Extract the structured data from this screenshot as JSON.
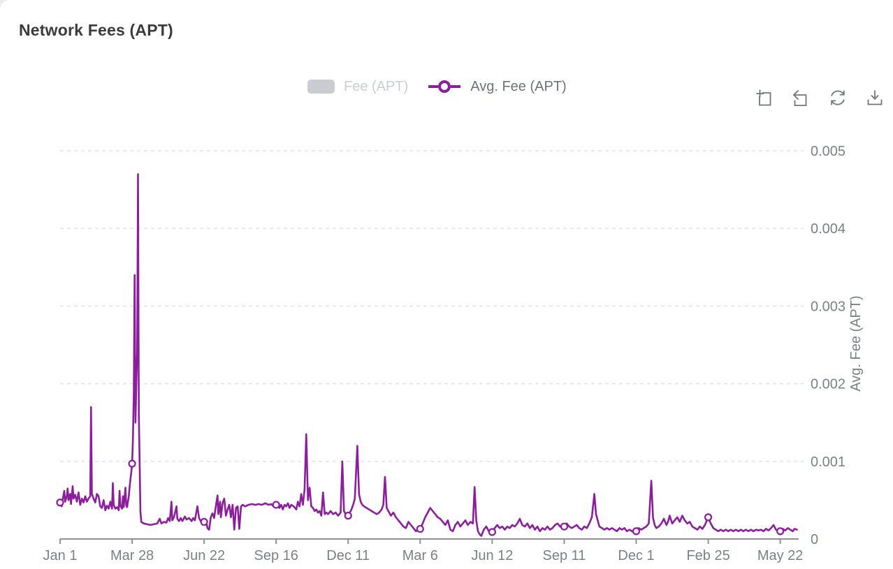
{
  "header": {
    "title": "Network Fees (APT)"
  },
  "legend": {
    "items": [
      {
        "label": "Fee (APT)",
        "type": "bar",
        "active": false,
        "swatch_color": "#c9cdd1",
        "text_color": "#c9cdd1"
      },
      {
        "label": "Avg. Fee (APT)",
        "type": "line",
        "active": true,
        "swatch_color": "#8c1d9c",
        "text_color": "#6e7278"
      }
    ]
  },
  "toolbar": {
    "color": "#6f7579",
    "buttons": [
      {
        "label": "Zoom select",
        "icon": "zoom-select-icon"
      },
      {
        "label": "Zoom reset",
        "icon": "zoom-reset-icon"
      },
      {
        "label": "Restore",
        "icon": "refresh-icon"
      },
      {
        "label": "Save as image",
        "icon": "download-icon"
      }
    ]
  },
  "chart_data": {
    "type": "line",
    "title": "Network Fees (APT)",
    "series_name": "Avg. Fee (APT)",
    "hidden_series_name": "Fee (APT)",
    "line_color": "#8c1d9c",
    "grid": {
      "horizontal": true,
      "style": "dashed",
      "color": "#e3e3e3"
    },
    "axis_color": "#8d9196",
    "label_color": "#7a8089",
    "y_axis": {
      "name": "Avg. Fee (APT)",
      "position": "right",
      "min": 0,
      "max": 0.005,
      "ticks": [
        0,
        0.001,
        0.002,
        0.003,
        0.004,
        0.005
      ],
      "tick_labels": [
        "0",
        "0.001",
        "0.002",
        "0.003",
        "0.004",
        "0.005"
      ]
    },
    "x_axis": {
      "tick_labels": [
        "Jan 1",
        "Mar 28",
        "Jun 22",
        "Sep 16",
        "Dec 11",
        "Mar 6",
        "Jun 12",
        "Sep 11",
        "Dec 1",
        "Feb 25",
        "May 22"
      ],
      "tick_days": [
        0,
        86,
        172,
        258,
        344,
        430,
        516,
        602,
        688,
        774,
        860
      ],
      "total_days": 882
    },
    "marker_days": [
      0,
      86,
      172,
      258,
      344,
      430,
      516,
      602,
      688,
      774,
      860
    ],
    "points": [
      [
        0,
        0.00047
      ],
      [
        2,
        0.00042
      ],
      [
        3,
        0.0005
      ],
      [
        5,
        0.00062
      ],
      [
        6,
        0.00048
      ],
      [
        8,
        0.00055
      ],
      [
        9,
        0.00065
      ],
      [
        10,
        0.0005
      ],
      [
        12,
        0.00058
      ],
      [
        13,
        0.00045
      ],
      [
        15,
        0.00068
      ],
      [
        16,
        0.00052
      ],
      [
        18,
        0.00057
      ],
      [
        20,
        0.00048
      ],
      [
        22,
        0.0006
      ],
      [
        24,
        0.00044
      ],
      [
        26,
        0.00052
      ],
      [
        28,
        0.00047
      ],
      [
        30,
        0.00055
      ],
      [
        32,
        0.00048
      ],
      [
        34,
        0.00052
      ],
      [
        36,
        0.00055
      ],
      [
        37,
        0.0017
      ],
      [
        38,
        0.00058
      ],
      [
        40,
        0.00052
      ],
      [
        42,
        0.00047
      ],
      [
        44,
        0.00058
      ],
      [
        46,
        0.00055
      ],
      [
        48,
        0.00042
      ],
      [
        50,
        0.0004
      ],
      [
        52,
        0.0005
      ],
      [
        54,
        0.00037
      ],
      [
        56,
        0.00043
      ],
      [
        58,
        0.00039
      ],
      [
        60,
        0.00048
      ],
      [
        62,
        0.00039
      ],
      [
        63,
        0.00072
      ],
      [
        64,
        0.00044
      ],
      [
        66,
        0.00039
      ],
      [
        68,
        0.00041
      ],
      [
        70,
        0.00037
      ],
      [
        71,
        0.00062
      ],
      [
        72,
        0.00043
      ],
      [
        74,
        0.00039
      ],
      [
        75,
        0.00055
      ],
      [
        76,
        0.00041
      ],
      [
        78,
        0.00066
      ],
      [
        79,
        0.00043
      ],
      [
        80,
        0.00041
      ],
      [
        82,
        0.00055
      ],
      [
        83,
        0.00067
      ],
      [
        84,
        0.00077
      ],
      [
        85,
        0.00086
      ],
      [
        86,
        0.00097
      ],
      [
        87,
        0.0013
      ],
      [
        88,
        0.0019
      ],
      [
        89,
        0.0034
      ],
      [
        90,
        0.0015
      ],
      [
        91,
        0.002
      ],
      [
        92,
        0.0024
      ],
      [
        93,
        0.0047
      ],
      [
        94,
        0.0016
      ],
      [
        95,
        0.001
      ],
      [
        96,
        0.00035
      ],
      [
        97,
        0.00022
      ],
      [
        100,
        0.0002
      ],
      [
        104,
        0.00019
      ],
      [
        108,
        0.00018
      ],
      [
        112,
        0.00019
      ],
      [
        116,
        0.0002
      ],
      [
        119,
        0.00026
      ],
      [
        121,
        0.0002
      ],
      [
        124,
        0.00022
      ],
      [
        127,
        0.00021
      ],
      [
        129,
        0.00027
      ],
      [
        131,
        0.00023
      ],
      [
        133,
        0.00048
      ],
      [
        134,
        0.00024
      ],
      [
        136,
        0.00028
      ],
      [
        139,
        0.00042
      ],
      [
        140,
        0.00026
      ],
      [
        142,
        0.00023
      ],
      [
        144,
        0.00027
      ],
      [
        146,
        0.00023
      ],
      [
        149,
        0.00029
      ],
      [
        151,
        0.00025
      ],
      [
        154,
        0.00027
      ],
      [
        157,
        0.00023
      ],
      [
        159,
        0.00027
      ],
      [
        161,
        0.00024
      ],
      [
        164,
        0.00042
      ],
      [
        166,
        0.00027
      ],
      [
        168,
        0.00023
      ],
      [
        170,
        0.00025
      ],
      [
        172,
        0.00022
      ],
      [
        174,
        0.00025
      ],
      [
        176,
        0.00014
      ],
      [
        178,
        0.00012
      ],
      [
        180,
        0.00028
      ],
      [
        182,
        0.00033
      ],
      [
        184,
        0.00027
      ],
      [
        186,
        0.00042
      ],
      [
        188,
        0.00056
      ],
      [
        189,
        0.00032
      ],
      [
        191,
        0.00048
      ],
      [
        192,
        0.00028
      ],
      [
        194,
        0.00046
      ],
      [
        196,
        0.00052
      ],
      [
        198,
        0.0003
      ],
      [
        200,
        0.00038
      ],
      [
        202,
        0.00044
      ],
      [
        204,
        0.00028
      ],
      [
        206,
        0.00044
      ],
      [
        208,
        0.00012
      ],
      [
        210,
        0.0004
      ],
      [
        212,
        0.00042
      ],
      [
        214,
        0.00013
      ],
      [
        216,
        0.00042
      ],
      [
        218,
        0.00044
      ],
      [
        221,
        0.00042
      ],
      [
        225,
        0.00044
      ],
      [
        229,
        0.00045
      ],
      [
        233,
        0.00044
      ],
      [
        237,
        0.00045
      ],
      [
        241,
        0.00044
      ],
      [
        245,
        0.00046
      ],
      [
        249,
        0.00044
      ],
      [
        252,
        0.00045
      ],
      [
        255,
        0.00042
      ],
      [
        258,
        0.00044
      ],
      [
        260,
        0.00046
      ],
      [
        262,
        0.0004
      ],
      [
        264,
        0.00044
      ],
      [
        266,
        0.00038
      ],
      [
        268,
        0.00044
      ],
      [
        270,
        0.00042
      ],
      [
        272,
        0.00046
      ],
      [
        274,
        0.0004
      ],
      [
        276,
        0.00044
      ],
      [
        279,
        0.00042
      ],
      [
        282,
        0.00038
      ],
      [
        284,
        0.00048
      ],
      [
        286,
        0.00042
      ],
      [
        288,
        0.00058
      ],
      [
        290,
        0.00044
      ],
      [
        292,
        0.00064
      ],
      [
        294,
        0.00135
      ],
      [
        296,
        0.0005
      ],
      [
        298,
        0.00066
      ],
      [
        300,
        0.00042
      ],
      [
        302,
        0.0004
      ],
      [
        304,
        0.00036
      ],
      [
        306,
        0.00038
      ],
      [
        308,
        0.00034
      ],
      [
        310,
        0.00036
      ],
      [
        312,
        0.0003
      ],
      [
        314,
        0.0006
      ],
      [
        316,
        0.00032
      ],
      [
        318,
        0.00034
      ],
      [
        320,
        0.00032
      ],
      [
        323,
        0.00036
      ],
      [
        326,
        0.00032
      ],
      [
        329,
        0.00034
      ],
      [
        332,
        0.0003
      ],
      [
        335,
        0.00034
      ],
      [
        337,
        0.001
      ],
      [
        339,
        0.00036
      ],
      [
        341,
        0.00032
      ],
      [
        344,
        0.0003
      ],
      [
        346,
        0.00034
      ],
      [
        348,
        0.00038
      ],
      [
        350,
        0.00044
      ],
      [
        352,
        0.00052
      ],
      [
        355,
        0.0012
      ],
      [
        357,
        0.00058
      ],
      [
        359,
        0.00048
      ],
      [
        361,
        0.00044
      ],
      [
        363,
        0.00042
      ],
      [
        366,
        0.0004
      ],
      [
        369,
        0.00038
      ],
      [
        372,
        0.00036
      ],
      [
        375,
        0.00034
      ],
      [
        378,
        0.00032
      ],
      [
        381,
        0.00034
      ],
      [
        384,
        0.00038
      ],
      [
        386,
        0.00044
      ],
      [
        388,
        0.0008
      ],
      [
        390,
        0.0004
      ],
      [
        392,
        0.00036
      ],
      [
        395,
        0.0003
      ],
      [
        398,
        0.00034
      ],
      [
        401,
        0.00028
      ],
      [
        404,
        0.00024
      ],
      [
        407,
        0.0002
      ],
      [
        410,
        0.00016
      ],
      [
        413,
        0.00014
      ],
      [
        416,
        0.00022
      ],
      [
        419,
        0.00018
      ],
      [
        422,
        0.00014
      ],
      [
        425,
        0.0001
      ],
      [
        428,
        0.00012
      ],
      [
        430,
        0.00013
      ],
      [
        433,
        0.0002
      ],
      [
        436,
        0.00028
      ],
      [
        439,
        0.00034
      ],
      [
        442,
        0.0004
      ],
      [
        445,
        0.00036
      ],
      [
        448,
        0.00032
      ],
      [
        451,
        0.00028
      ],
      [
        454,
        0.00026
      ],
      [
        457,
        0.00022
      ],
      [
        460,
        0.00018
      ],
      [
        463,
        0.00024
      ],
      [
        466,
        0.00012
      ],
      [
        469,
        0.0001
      ],
      [
        472,
        0.00018
      ],
      [
        475,
        0.00022
      ],
      [
        478,
        0.00016
      ],
      [
        481,
        0.0002
      ],
      [
        484,
        0.00024
      ],
      [
        487,
        0.00018
      ],
      [
        490,
        0.00022
      ],
      [
        493,
        0.0002
      ],
      [
        495,
        0.00067
      ],
      [
        497,
        0.00024
      ],
      [
        499,
        0.0001
      ],
      [
        501,
        6e-05
      ],
      [
        503,
        4e-05
      ],
      [
        506,
        0.00012
      ],
      [
        509,
        0.00016
      ],
      [
        512,
        0.0001
      ],
      [
        514,
        8e-05
      ],
      [
        516,
        9e-05
      ],
      [
        519,
        0.00014
      ],
      [
        522,
        0.00018
      ],
      [
        525,
        0.00014
      ],
      [
        528,
        0.00016
      ],
      [
        531,
        0.00012
      ],
      [
        534,
        0.00016
      ],
      [
        537,
        0.00014
      ],
      [
        540,
        0.00018
      ],
      [
        543,
        0.00016
      ],
      [
        546,
        0.0002
      ],
      [
        549,
        0.00026
      ],
      [
        552,
        0.00018
      ],
      [
        555,
        0.00016
      ],
      [
        558,
        0.0002
      ],
      [
        561,
        0.00014
      ],
      [
        564,
        0.00018
      ],
      [
        567,
        0.00012
      ],
      [
        570,
        0.00016
      ],
      [
        573,
        0.0001
      ],
      [
        576,
        0.00014
      ],
      [
        579,
        0.00012
      ],
      [
        582,
        0.00016
      ],
      [
        585,
        0.00012
      ],
      [
        588,
        0.00014
      ],
      [
        591,
        0.00018
      ],
      [
        594,
        0.0002
      ],
      [
        597,
        0.00016
      ],
      [
        600,
        0.00019
      ],
      [
        602,
        0.00016
      ],
      [
        605,
        0.0002
      ],
      [
        608,
        0.00016
      ],
      [
        611,
        0.00014
      ],
      [
        614,
        0.00016
      ],
      [
        617,
        0.00018
      ],
      [
        620,
        0.00014
      ],
      [
        623,
        0.00012
      ],
      [
        626,
        0.00016
      ],
      [
        629,
        0.00014
      ],
      [
        632,
        0.0002
      ],
      [
        635,
        0.00028
      ],
      [
        638,
        0.00058
      ],
      [
        640,
        0.00032
      ],
      [
        642,
        0.00024
      ],
      [
        644,
        0.00016
      ],
      [
        647,
        0.00014
      ],
      [
        650,
        0.00012
      ],
      [
        653,
        0.00014
      ],
      [
        656,
        0.00012
      ],
      [
        659,
        0.00014
      ],
      [
        662,
        0.00012
      ],
      [
        665,
        0.0001
      ],
      [
        668,
        0.00014
      ],
      [
        671,
        0.00012
      ],
      [
        674,
        0.00014
      ],
      [
        677,
        0.0001
      ],
      [
        680,
        0.00012
      ],
      [
        683,
        0.0001
      ],
      [
        686,
        8e-05
      ],
      [
        688,
        0.0001
      ],
      [
        691,
        0.00014
      ],
      [
        694,
        0.00012
      ],
      [
        697,
        0.00014
      ],
      [
        700,
        0.00016
      ],
      [
        703,
        0.0002
      ],
      [
        706,
        0.00075
      ],
      [
        708,
        0.00028
      ],
      [
        710,
        0.00018
      ],
      [
        712,
        0.00014
      ],
      [
        715,
        0.00016
      ],
      [
        718,
        0.0002
      ],
      [
        721,
        0.00026
      ],
      [
        724,
        0.00018
      ],
      [
        726,
        0.00022
      ],
      [
        728,
        0.0003
      ],
      [
        731,
        0.0002
      ],
      [
        734,
        0.00024
      ],
      [
        737,
        0.00028
      ],
      [
        740,
        0.00022
      ],
      [
        743,
        0.0003
      ],
      [
        746,
        0.00024
      ],
      [
        749,
        0.0002
      ],
      [
        752,
        0.00022
      ],
      [
        755,
        0.00016
      ],
      [
        758,
        0.00014
      ],
      [
        761,
        0.00012
      ],
      [
        764,
        0.00016
      ],
      [
        767,
        0.00013
      ],
      [
        770,
        0.00018
      ],
      [
        774,
        0.00028
      ],
      [
        777,
        0.0002
      ],
      [
        780,
        0.00014
      ],
      [
        783,
        0.00012
      ],
      [
        786,
        0.0001
      ],
      [
        789,
        0.00012
      ],
      [
        792,
        0.0001
      ],
      [
        795,
        0.00012
      ],
      [
        798,
        0.0001
      ],
      [
        801,
        0.00012
      ],
      [
        804,
        0.0001
      ],
      [
        807,
        0.00012
      ],
      [
        810,
        0.0001
      ],
      [
        813,
        0.00012
      ],
      [
        816,
        0.0001
      ],
      [
        819,
        0.00012
      ],
      [
        822,
        0.0001
      ],
      [
        825,
        0.00012
      ],
      [
        828,
        0.0001
      ],
      [
        831,
        0.00012
      ],
      [
        834,
        0.00011
      ],
      [
        837,
        0.00012
      ],
      [
        840,
        0.0001
      ],
      [
        843,
        0.00013
      ],
      [
        846,
        0.00011
      ],
      [
        849,
        0.00014
      ],
      [
        852,
        0.00018
      ],
      [
        855,
        0.00012
      ],
      [
        858,
        0.0001
      ],
      [
        860,
        0.0001
      ],
      [
        863,
        0.00013
      ],
      [
        866,
        0.00011
      ],
      [
        869,
        0.00014
      ],
      [
        872,
        0.00012
      ],
      [
        875,
        0.0001
      ],
      [
        877,
        0.00013
      ],
      [
        880,
        0.00012
      ]
    ]
  }
}
